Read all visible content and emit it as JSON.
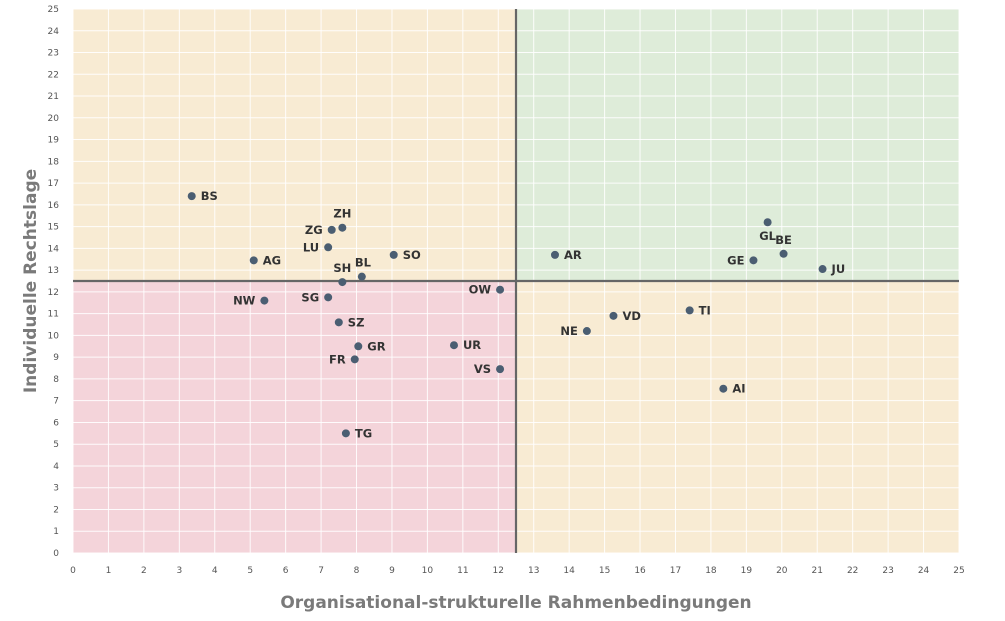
{
  "chart_data": {
    "type": "scatter",
    "title": "",
    "xlabel": "Organisational-strukturelle Rahmenbedingungen",
    "ylabel": "Individuelle Rechtslage",
    "xlim": [
      0,
      25
    ],
    "ylim": [
      0,
      25
    ],
    "x_ticks": [
      0,
      1,
      2,
      3,
      4,
      5,
      6,
      7,
      8,
      9,
      10,
      11,
      12,
      13,
      14,
      15,
      16,
      17,
      18,
      19,
      20,
      21,
      22,
      23,
      24,
      25
    ],
    "y_ticks": [
      0,
      1,
      2,
      3,
      4,
      5,
      6,
      7,
      8,
      9,
      10,
      11,
      12,
      13,
      14,
      15,
      16,
      17,
      18,
      19,
      20,
      21,
      22,
      23,
      24,
      25
    ],
    "grid": true,
    "divider_x": 12.5,
    "divider_y": 12.5,
    "colors": {
      "top_left": "#f8ebd3",
      "top_right": "#deecd9",
      "bottom_left": "#f4d4da",
      "bottom_right": "#f8ebd3",
      "point": "#4b5e72",
      "divider": "#666666"
    },
    "points": [
      {
        "label": "BS",
        "x": 3.35,
        "y": 16.4,
        "label_side": "right"
      },
      {
        "label": "ZH",
        "x": 7.6,
        "y": 14.95,
        "label_side": "above"
      },
      {
        "label": "ZG",
        "x": 7.3,
        "y": 14.85,
        "label_side": "left"
      },
      {
        "label": "LU",
        "x": 7.2,
        "y": 14.05,
        "label_side": "left"
      },
      {
        "label": "SO",
        "x": 9.05,
        "y": 13.7,
        "label_side": "right"
      },
      {
        "label": "AG",
        "x": 5.1,
        "y": 13.45,
        "label_side": "right"
      },
      {
        "label": "BL",
        "x": 8.15,
        "y": 12.7,
        "label_side": "above-right"
      },
      {
        "label": "SH",
        "x": 7.6,
        "y": 12.45,
        "label_side": "above"
      },
      {
        "label": "AR",
        "x": 13.6,
        "y": 13.7,
        "label_side": "right"
      },
      {
        "label": "GL",
        "x": 19.6,
        "y": 15.2,
        "label_side": "below"
      },
      {
        "label": "BE",
        "x": 20.05,
        "y": 13.75,
        "label_side": "above"
      },
      {
        "label": "GE",
        "x": 19.2,
        "y": 13.45,
        "label_side": "left"
      },
      {
        "label": "JU",
        "x": 21.15,
        "y": 13.05,
        "label_side": "right"
      },
      {
        "label": "OW",
        "x": 12.05,
        "y": 12.1,
        "label_side": "left"
      },
      {
        "label": "NW",
        "x": 5.4,
        "y": 11.6,
        "label_side": "left"
      },
      {
        "label": "SG",
        "x": 7.2,
        "y": 11.75,
        "label_side": "left"
      },
      {
        "label": "SZ",
        "x": 7.5,
        "y": 10.6,
        "label_side": "right"
      },
      {
        "label": "VD",
        "x": 15.25,
        "y": 10.9,
        "label_side": "right"
      },
      {
        "label": "TI",
        "x": 17.4,
        "y": 11.15,
        "label_side": "right"
      },
      {
        "label": "NE",
        "x": 14.5,
        "y": 10.2,
        "label_side": "left"
      },
      {
        "label": "GR",
        "x": 8.05,
        "y": 9.5,
        "label_side": "right"
      },
      {
        "label": "UR",
        "x": 10.75,
        "y": 9.55,
        "label_side": "right"
      },
      {
        "label": "FR",
        "x": 7.95,
        "y": 8.9,
        "label_side": "left"
      },
      {
        "label": "VS",
        "x": 12.05,
        "y": 8.45,
        "label_side": "left"
      },
      {
        "label": "AI",
        "x": 18.35,
        "y": 7.55,
        "label_side": "right"
      },
      {
        "label": "TG",
        "x": 7.7,
        "y": 5.5,
        "label_side": "right"
      }
    ]
  }
}
